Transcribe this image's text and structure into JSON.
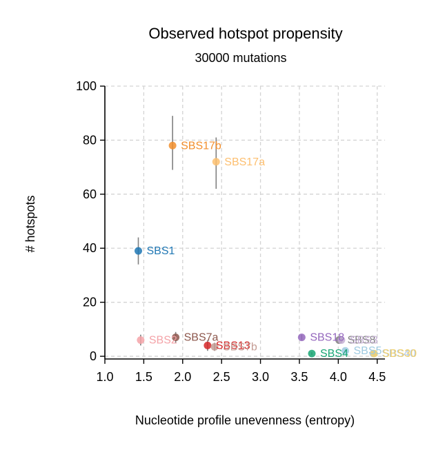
{
  "chart_data": {
    "type": "scatter",
    "title": "Observed hotspot propensity",
    "subtitle": "30000 mutations",
    "xlabel": "Nucleotide profile unevenness (entropy)",
    "ylabel": "# hotspots",
    "xlim": [
      1.0,
      4.6
    ],
    "ylim": [
      -1,
      100
    ],
    "xticks": [
      1.0,
      1.5,
      2.0,
      2.5,
      3.0,
      3.5,
      4.0,
      4.5
    ],
    "yticks": [
      0,
      20,
      40,
      60,
      80,
      100
    ],
    "xtick_labels": [
      "1.0",
      "1.5",
      "2.0",
      "2.5",
      "3.0",
      "3.5",
      "4.0",
      "4.5"
    ],
    "ytick_labels": [
      "0",
      "20",
      "40",
      "60",
      "80",
      "100"
    ],
    "grid": true,
    "points": [
      {
        "label": "SBS17b",
        "x": 1.87,
        "y": 78,
        "err": [
          69,
          89
        ],
        "color": "#f28e2b"
      },
      {
        "label": "SBS17a",
        "x": 2.43,
        "y": 72,
        "err": [
          62,
          81
        ],
        "color": "#fdbf6f"
      },
      {
        "label": "SBS1",
        "x": 1.43,
        "y": 39,
        "err": [
          34,
          44
        ],
        "color": "#1f77b4"
      },
      {
        "label": "SBS2",
        "x": 1.46,
        "y": 6,
        "err": [
          4,
          8
        ],
        "color": "#f4a3a8"
      },
      {
        "label": "SBS7a",
        "x": 1.91,
        "y": 7,
        "err": [
          5,
          9
        ],
        "color": "#8c564b"
      },
      {
        "label": "SBS13",
        "x": 2.32,
        "y": 4,
        "err": [
          2,
          6
        ],
        "color": "#d62728"
      },
      {
        "label": "SBS7b",
        "x": 2.41,
        "y": 3.5,
        "err": [
          2,
          5
        ],
        "color": "#c49c94"
      },
      {
        "label": "SBS18",
        "x": 3.53,
        "y": 7,
        "err": [
          6,
          8
        ],
        "color": "#9467bd"
      },
      {
        "label": "SBS4",
        "x": 3.66,
        "y": 1,
        "err": [
          0.5,
          1.5
        ],
        "color": "#17a673"
      },
      {
        "label": "SBS8",
        "x": 4.01,
        "y": 6,
        "err": [
          5,
          7
        ],
        "color": "#7f7f7f"
      },
      {
        "label": "SBS3",
        "x": 4.04,
        "y": 6,
        "err": [
          5,
          7
        ],
        "color": "#c5b0d5"
      },
      {
        "label": "SBS5",
        "x": 4.09,
        "y": 2,
        "err": [
          1.5,
          2.5
        ],
        "color": "#9ecae1"
      },
      {
        "label": "SBS40",
        "x": 4.45,
        "y": 1,
        "err": [
          0.5,
          1.5
        ],
        "color": "#aec7e8"
      },
      {
        "label": "SBS30",
        "x": 4.46,
        "y": 1,
        "err": [
          0.5,
          1.5
        ],
        "color": "#f2d16b"
      }
    ]
  }
}
